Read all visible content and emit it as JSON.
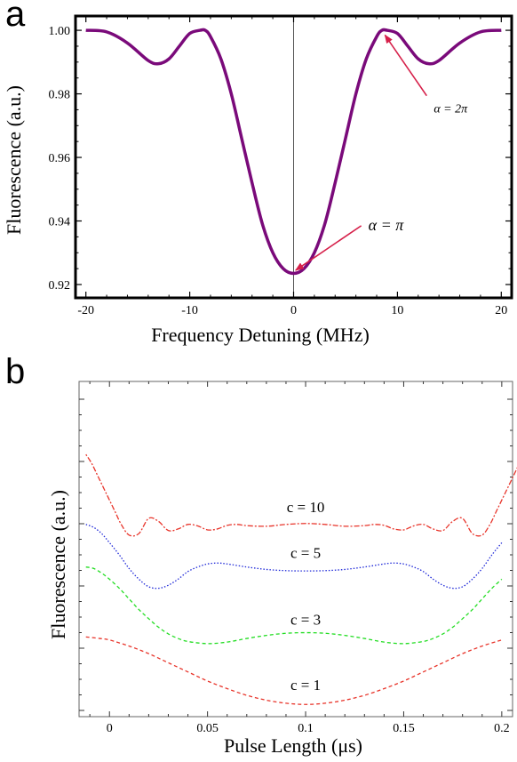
{
  "panel_labels": {
    "a": "a",
    "b": "b"
  },
  "chart_data": [
    {
      "type": "line",
      "panel": "a",
      "xlabel": "Frequency Detuning (MHz)",
      "ylabel": "Fluorescence (a.u.)",
      "xlim": [
        -21,
        21
      ],
      "ylim": [
        0.9158,
        1.0045
      ],
      "xticks": [
        -20,
        -10,
        0,
        10,
        20
      ],
      "xtick_labels": [
        "-20",
        "-10",
        "0",
        "10",
        "20"
      ],
      "yticks": [
        0.92,
        0.94,
        0.96,
        0.98,
        1.0
      ],
      "ytick_labels": [
        "0.92",
        "0.94",
        "0.96",
        "0.98",
        "1.00"
      ],
      "series": [
        {
          "color": "#7a0a7a",
          "x": [
            -20,
            -18,
            -16,
            -14,
            -13,
            -12,
            -11,
            -10,
            -9,
            -8.5,
            -8,
            -7,
            -6,
            -5,
            -4,
            -3,
            -2,
            -1,
            0,
            1,
            2,
            3,
            4,
            5,
            6,
            7,
            8,
            8.5,
            9,
            10,
            11,
            12,
            13,
            14,
            16,
            18,
            20
          ],
          "y": [
            1.0,
            0.9995,
            0.996,
            0.9905,
            0.9895,
            0.991,
            0.995,
            0.999,
            1.0,
            1.0,
            0.998,
            0.991,
            0.98,
            0.966,
            0.952,
            0.939,
            0.93,
            0.925,
            0.9235,
            0.925,
            0.93,
            0.939,
            0.952,
            0.966,
            0.98,
            0.991,
            0.998,
            1.0,
            1.0,
            0.999,
            0.995,
            0.991,
            0.9895,
            0.9905,
            0.996,
            0.9995,
            1.0
          ]
        }
      ],
      "vertical_line_x": 0,
      "annotations": [
        {
          "text": "α = 2π",
          "x": 13.5,
          "y": 0.9755,
          "arrow_to": [
            8.8,
            0.9985
          ],
          "color": "#d6204a"
        },
        {
          "text": "α = π",
          "x": 7.2,
          "y": 0.9385,
          "arrow_to": [
            0.2,
            0.9245
          ],
          "color": "#d6204a"
        }
      ]
    },
    {
      "type": "line",
      "panel": "b",
      "xlabel": "Pulse Length (μs)",
      "ylabel": "Fluorescence (a.u.)",
      "xlim": [
        -0.0155,
        0.2055
      ],
      "ylim": [
        0,
        1
      ],
      "xticks": [
        0,
        0.05,
        0.1,
        0.15,
        0.2
      ],
      "xtick_labels": [
        "0",
        "0.05",
        "0.1",
        "0.15",
        "0.2"
      ],
      "series": [
        {
          "name": "c = 10",
          "color": "#e8342a",
          "dash": "2,2,6,2",
          "x": [
            -0.012,
            -0.009,
            -0.006,
            -0.003,
            0,
            0.003,
            0.006,
            0.01,
            0.015,
            0.02,
            0.025,
            0.03,
            0.035,
            0.04,
            0.045,
            0.05,
            0.055,
            0.06,
            0.065,
            0.07,
            0.08,
            0.09,
            0.1,
            0.11,
            0.12,
            0.13,
            0.135,
            0.14,
            0.145,
            0.15,
            0.155,
            0.16,
            0.165,
            0.17,
            0.175,
            0.18,
            0.185,
            0.19,
            0.194,
            0.197,
            0.2,
            0.203,
            0.206,
            0.209,
            0.212
          ],
          "y": [
            0.83,
            0.8,
            0.76,
            0.72,
            0.68,
            0.64,
            0.6,
            0.565,
            0.57,
            0.62,
            0.61,
            0.58,
            0.585,
            0.6,
            0.595,
            0.582,
            0.585,
            0.597,
            0.6,
            0.596,
            0.594,
            0.6,
            0.603,
            0.6,
            0.594,
            0.596,
            0.6,
            0.597,
            0.585,
            0.582,
            0.595,
            0.6,
            0.585,
            0.58,
            0.61,
            0.62,
            0.57,
            0.565,
            0.6,
            0.64,
            0.68,
            0.72,
            0.76,
            0.8,
            0.83
          ]
        },
        {
          "name": "c = 5",
          "color": "#1e28d8",
          "dash": "1.5,2",
          "x": [
            -0.012,
            -0.008,
            -0.004,
            0,
            0.005,
            0.01,
            0.015,
            0.02,
            0.025,
            0.03,
            0.035,
            0.04,
            0.045,
            0.05,
            0.055,
            0.06,
            0.07,
            0.08,
            0.09,
            0.1,
            0.11,
            0.12,
            0.13,
            0.14,
            0.145,
            0.15,
            0.155,
            0.16,
            0.165,
            0.17,
            0.175,
            0.18,
            0.185,
            0.19,
            0.195,
            0.2
          ],
          "y": [
            0.6,
            0.59,
            0.57,
            0.54,
            0.5,
            0.455,
            0.42,
            0.395,
            0.39,
            0.4,
            0.42,
            0.445,
            0.46,
            0.47,
            0.473,
            0.47,
            0.46,
            0.452,
            0.448,
            0.447,
            0.448,
            0.452,
            0.46,
            0.47,
            0.473,
            0.47,
            0.46,
            0.445,
            0.42,
            0.4,
            0.39,
            0.395,
            0.42,
            0.455,
            0.5,
            0.54
          ]
        },
        {
          "name": "c = 3",
          "color": "#22dd22",
          "dash": "4,3",
          "x": [
            -0.012,
            -0.008,
            -0.004,
            0,
            0.005,
            0.01,
            0.015,
            0.02,
            0.025,
            0.03,
            0.035,
            0.04,
            0.05,
            0.06,
            0.07,
            0.08,
            0.09,
            0.1,
            0.11,
            0.12,
            0.13,
            0.14,
            0.15,
            0.16,
            0.165,
            0.17,
            0.175,
            0.18,
            0.185,
            0.19,
            0.195,
            0.2
          ],
          "y": [
            0.46,
            0.455,
            0.44,
            0.42,
            0.39,
            0.355,
            0.32,
            0.29,
            0.262,
            0.24,
            0.225,
            0.215,
            0.208,
            0.213,
            0.225,
            0.235,
            0.242,
            0.244,
            0.242,
            0.235,
            0.225,
            0.213,
            0.208,
            0.215,
            0.225,
            0.24,
            0.262,
            0.29,
            0.32,
            0.355,
            0.39,
            0.42
          ]
        },
        {
          "name": "c = 1",
          "color": "#e8342a",
          "dash": "4,3",
          "x": [
            -0.012,
            -0.005,
            0,
            0.01,
            0.02,
            0.03,
            0.04,
            0.05,
            0.06,
            0.07,
            0.08,
            0.09,
            0.1,
            0.11,
            0.12,
            0.13,
            0.14,
            0.15,
            0.16,
            0.17,
            0.18,
            0.19,
            0.2
          ],
          "y": [
            0.23,
            0.225,
            0.22,
            0.2,
            0.175,
            0.145,
            0.115,
            0.085,
            0.06,
            0.038,
            0.022,
            0.012,
            0.008,
            0.012,
            0.022,
            0.038,
            0.06,
            0.085,
            0.115,
            0.145,
            0.175,
            0.2,
            0.22
          ]
        }
      ],
      "labels": [
        {
          "text": "c = 10",
          "x": 0.1,
          "y": 0.64
        },
        {
          "text": "c = 5",
          "x": 0.1,
          "y": 0.49
        },
        {
          "text": "c = 3",
          "x": 0.1,
          "y": 0.27
        },
        {
          "text": "c = 1",
          "x": 0.1,
          "y": 0.055
        }
      ]
    }
  ]
}
